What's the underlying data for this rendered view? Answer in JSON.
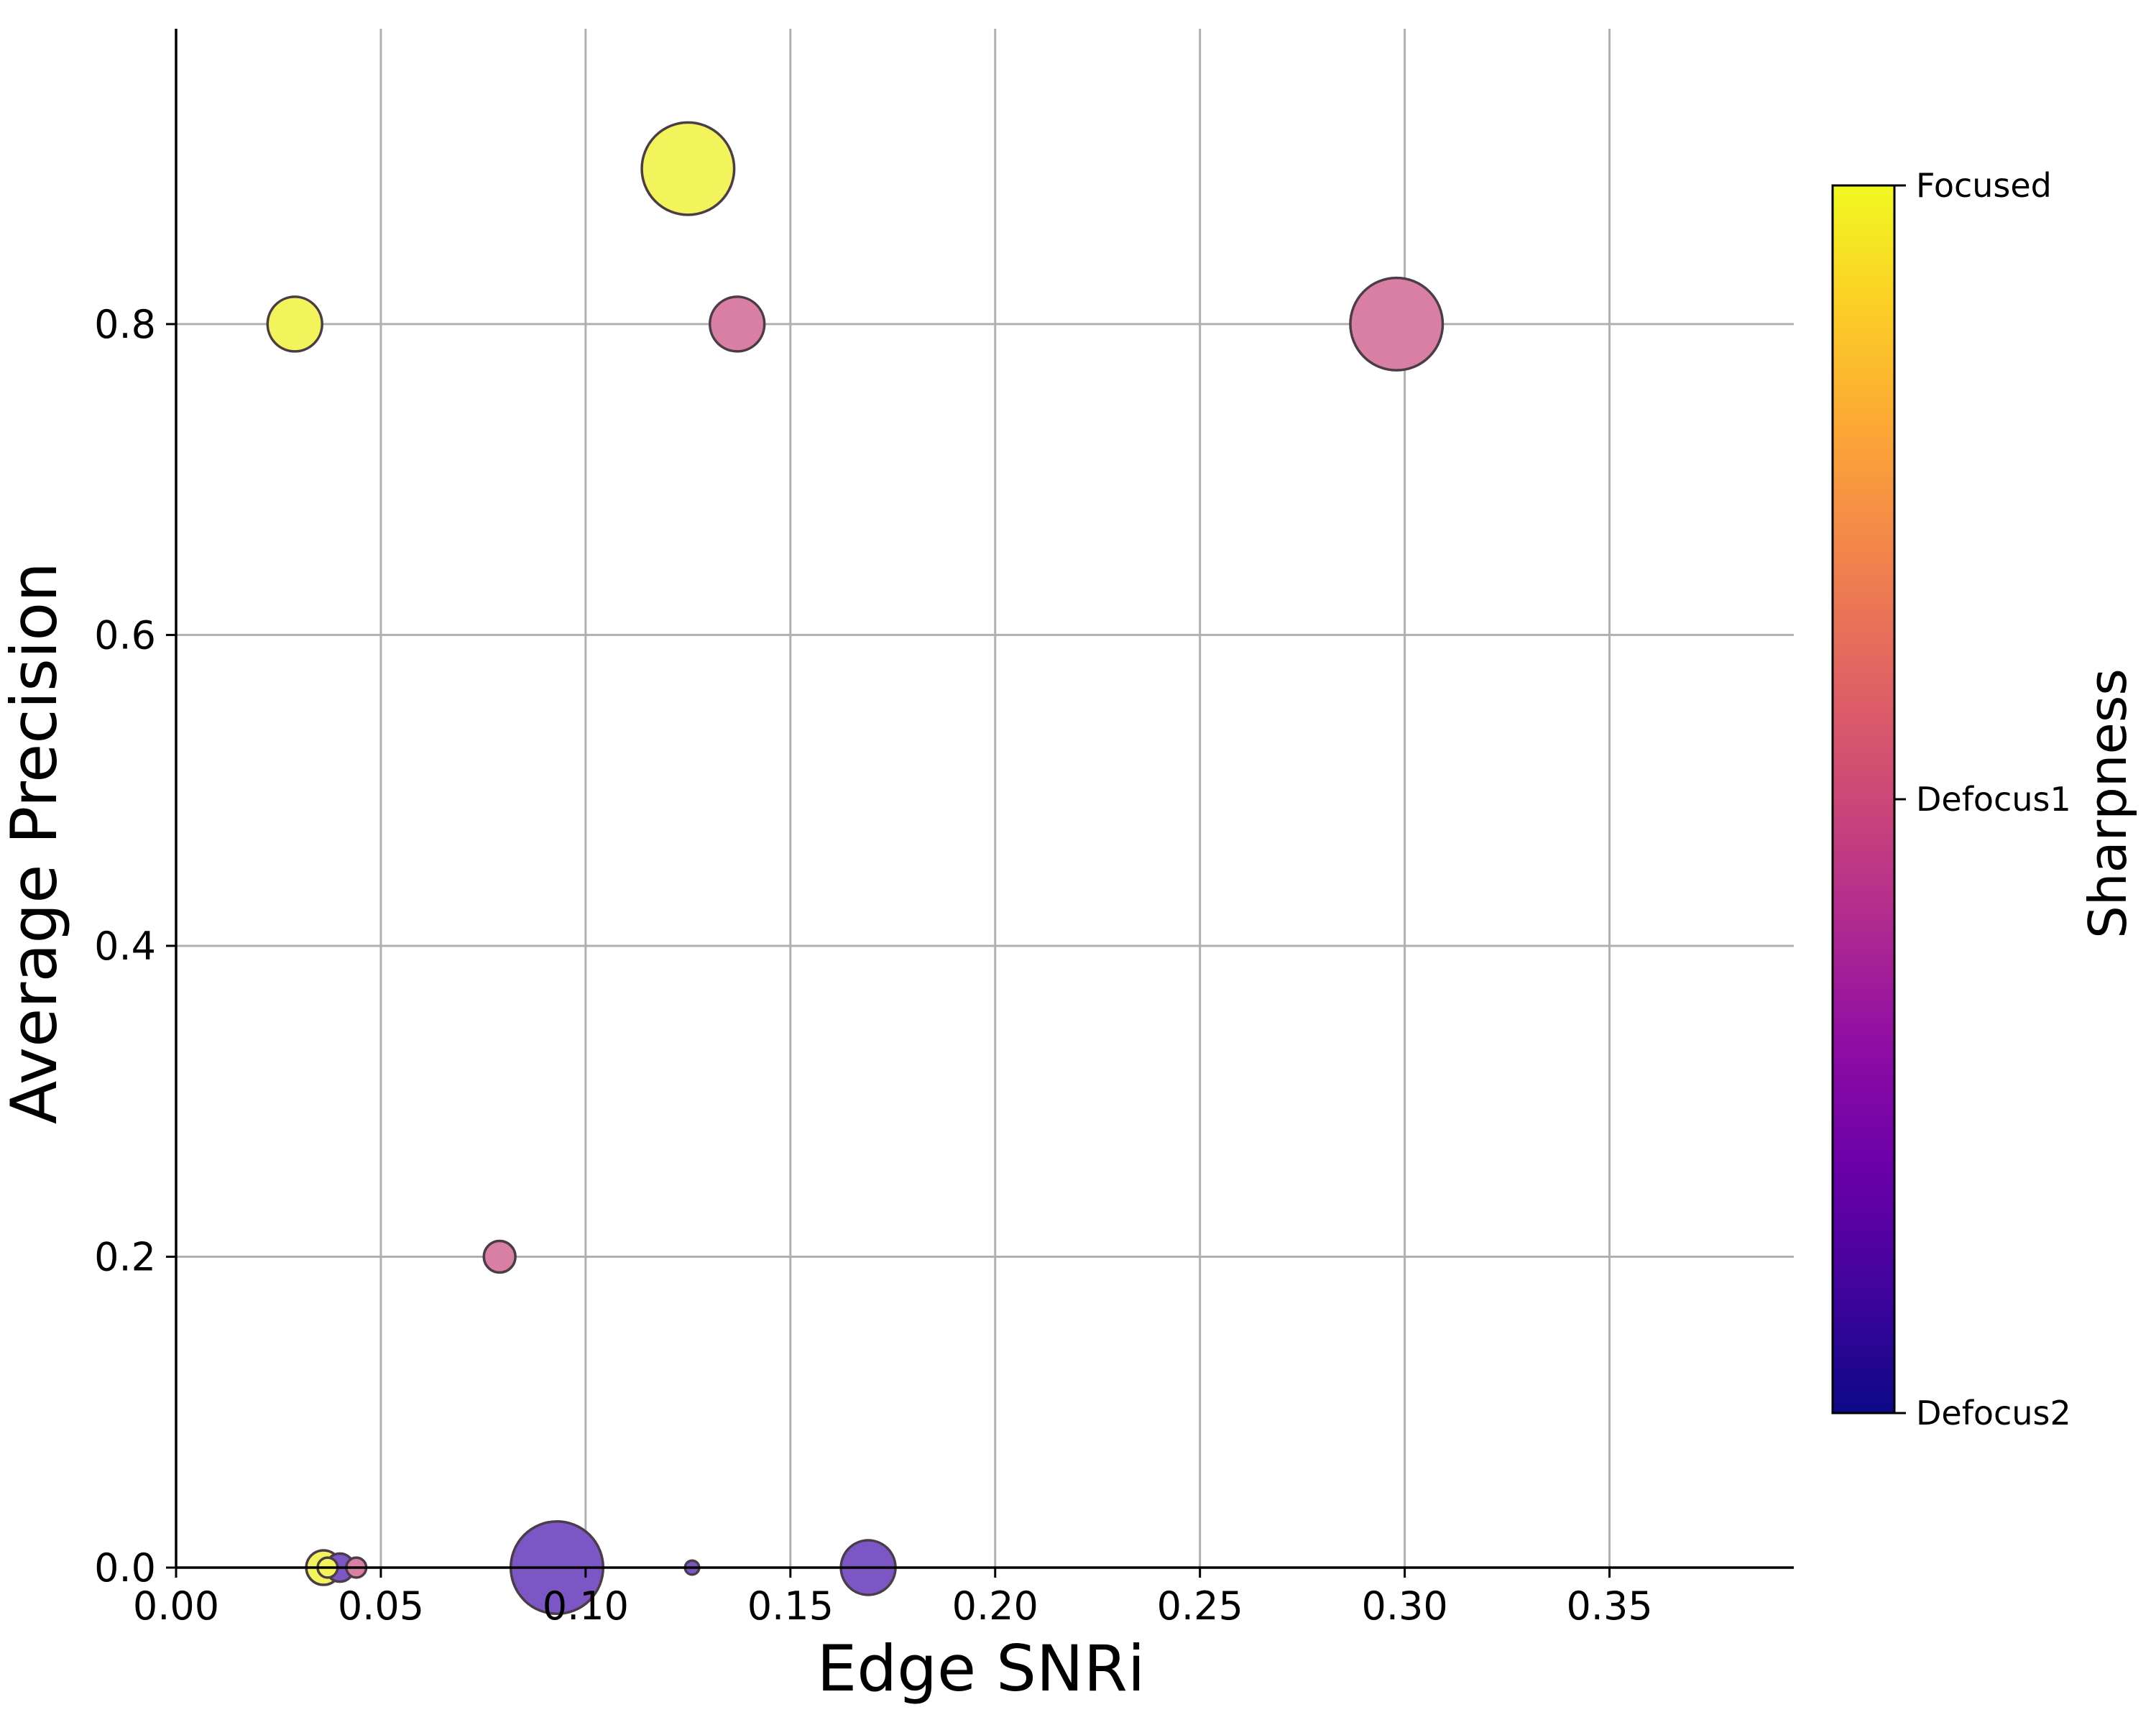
{
  "chart_data": {
    "type": "scatter",
    "title": "",
    "xlabel": "Edge SNRi",
    "ylabel": "Average Precision",
    "xlim": [
      0.0,
      0.395
    ],
    "ylim": [
      0.0,
      0.99
    ],
    "x_ticks": [
      "0.00",
      "0.05",
      "0.10",
      "0.15",
      "0.20",
      "0.25",
      "0.30",
      "0.35"
    ],
    "y_ticks": [
      "0.0",
      "0.2",
      "0.4",
      "0.6",
      "0.8"
    ],
    "grid": true,
    "colorbar": {
      "title": "Sharpness",
      "colormap": "plasma",
      "ticks": [
        "Defocus2",
        "Defocus1",
        "Focused"
      ]
    },
    "category_colors": {
      "Focused": "#f3f35c",
      "Defocus1": "#d97fa3",
      "Defocus2": "#7c56c4"
    },
    "points": [
      {
        "x": 0.125,
        "y": 0.9,
        "size": 4.3,
        "category": "Focused"
      },
      {
        "x": 0.029,
        "y": 0.8,
        "size": 1.5,
        "category": "Focused"
      },
      {
        "x": 0.036,
        "y": 0.0,
        "size": 0.6,
        "category": "Focused"
      },
      {
        "x": 0.037,
        "y": 0.0,
        "size": 0.2,
        "category": "Focused"
      },
      {
        "x": 0.298,
        "y": 0.8,
        "size": 4.3,
        "category": "Defocus1"
      },
      {
        "x": 0.137,
        "y": 0.8,
        "size": 1.5,
        "category": "Defocus1"
      },
      {
        "x": 0.079,
        "y": 0.2,
        "size": 0.5,
        "category": "Defocus1"
      },
      {
        "x": 0.044,
        "y": 0.0,
        "size": 0.2,
        "category": "Defocus1"
      },
      {
        "x": 0.093,
        "y": 0.0,
        "size": 4.3,
        "category": "Defocus2"
      },
      {
        "x": 0.169,
        "y": 0.0,
        "size": 1.5,
        "category": "Defocus2"
      },
      {
        "x": 0.04,
        "y": 0.0,
        "size": 0.4,
        "category": "Defocus2"
      },
      {
        "x": 0.126,
        "y": 0.0,
        "size": 0.1,
        "category": "Defocus2"
      }
    ]
  }
}
